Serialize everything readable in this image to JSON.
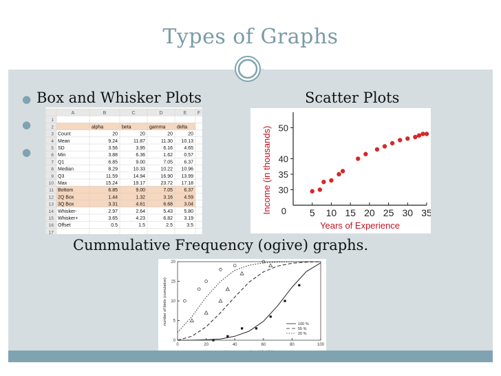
{
  "slide": {
    "title": "Types of Graphs",
    "bullets": [
      "Box and Whisker Plots",
      "",
      ""
    ],
    "scatter_title": "Scatter Plots",
    "ogive_caption": "Cummulative  Frequency  (ogive) graphs."
  },
  "spreadsheet": {
    "col_headers": [
      "",
      "A",
      "B",
      "C",
      "D",
      "E",
      "F"
    ],
    "rows": [
      {
        "n": "1",
        "a": "",
        "b": "",
        "c": "",
        "d": "",
        "e": "",
        "hl": false
      },
      {
        "n": "2",
        "a": "",
        "b": "alpha",
        "c": "beta",
        "d": "gamma",
        "e": "delta",
        "hl": true
      },
      {
        "n": "3",
        "a": "Count",
        "b": "20",
        "c": "20",
        "d": "20",
        "e": "20",
        "hl": false
      },
      {
        "n": "4",
        "a": "Mean",
        "b": "9.24",
        "c": "11.87",
        "d": "11.30",
        "e": "10.13",
        "hl": false
      },
      {
        "n": "5",
        "a": "SD",
        "b": "3.56",
        "c": "3.95",
        "d": "6.16",
        "e": "4.65",
        "hl": false
      },
      {
        "n": "6",
        "a": "Min",
        "b": "3.88",
        "c": "6.36",
        "d": "1.62",
        "e": "0.57",
        "hl": false
      },
      {
        "n": "7",
        "a": "Q1",
        "b": "6.85",
        "c": "9.00",
        "d": "7.05",
        "e": "6.37",
        "hl": false
      },
      {
        "n": "8",
        "a": "Median",
        "b": "8.29",
        "c": "10.33",
        "d": "10.22",
        "e": "10.96",
        "hl": false
      },
      {
        "n": "9",
        "a": "Q3",
        "b": "11.59",
        "c": "14.94",
        "d": "16.90",
        "e": "13.99",
        "hl": false
      },
      {
        "n": "10",
        "a": "Max",
        "b": "15.24",
        "c": "19.17",
        "d": "23.72",
        "e": "17.18",
        "hl": false
      },
      {
        "n": "11",
        "a": "Bottom",
        "b": "6.85",
        "c": "9.00",
        "d": "7.05",
        "e": "6.37",
        "hl": true
      },
      {
        "n": "12",
        "a": "2Q Box",
        "b": "1.44",
        "c": "1.32",
        "d": "3.16",
        "e": "4.59",
        "hl": true
      },
      {
        "n": "13",
        "a": "3Q Box",
        "b": "3.31",
        "c": "4.61",
        "d": "6.68",
        "e": "3.04",
        "hl": true
      },
      {
        "n": "14",
        "a": "Whisker-",
        "b": "2.97",
        "c": "2.64",
        "d": "5.43",
        "e": "5.80",
        "hl": false
      },
      {
        "n": "15",
        "a": "Whisker+",
        "b": "3.65",
        "c": "4.23",
        "d": "6.82",
        "e": "3.19",
        "hl": false
      },
      {
        "n": "16",
        "a": "Offset",
        "b": "0.5",
        "c": "1.5",
        "d": "2.5",
        "e": "3.5",
        "hl": false
      },
      {
        "n": "17",
        "a": "",
        "b": "",
        "c": "",
        "d": "",
        "e": "",
        "hl": false
      }
    ]
  },
  "scatter": {
    "ylabel": "Income (in thousands)",
    "xlabel": "Years of Experience",
    "xticks": [
      "5",
      "10",
      "15",
      "20",
      "25",
      "30",
      "35"
    ],
    "yticks": [
      "30",
      "35",
      "40",
      "50"
    ],
    "origin": "0"
  },
  "ogive": {
    "xticks": [
      "0",
      "20",
      "40",
      "60",
      "80",
      "100"
    ],
    "yticks": [
      "0",
      "5",
      "10",
      "15",
      "20"
    ],
    "xlabel": "time spent on inactivity (%)",
    "ylabel": "number of birds (cumulative)",
    "legend": [
      "100 %",
      "55 %",
      "20 %"
    ]
  },
  "chart_data": [
    {
      "type": "scatter",
      "title": "Scatter Plots",
      "xlabel": "Years of Experience",
      "ylabel": "Income (in thousands)",
      "xlim": [
        0,
        35
      ],
      "ylim": [
        25,
        55
      ],
      "points": [
        [
          5,
          29.5
        ],
        [
          7,
          30
        ],
        [
          8,
          32.5
        ],
        [
          10,
          33
        ],
        [
          12,
          35
        ],
        [
          13,
          36
        ],
        [
          17,
          40
        ],
        [
          19,
          41.5
        ],
        [
          22,
          43
        ],
        [
          24,
          44
        ],
        [
          26,
          45
        ],
        [
          28,
          46
        ],
        [
          30,
          46.5
        ],
        [
          32,
          47
        ],
        [
          33,
          47.5
        ],
        [
          34,
          48
        ],
        [
          35,
          48
        ]
      ],
      "color": "#d62828"
    },
    {
      "type": "line",
      "title": "Cummulative  Frequency  (ogive) graphs.",
      "xlabel": "time spent on inactivity (%)",
      "ylabel": "number of birds (cumulative)",
      "xlim": [
        0,
        100
      ],
      "ylim": [
        0,
        20
      ],
      "series": [
        {
          "name": "100 %",
          "style": "solid",
          "x": [
            0,
            10,
            20,
            30,
            40,
            50,
            60,
            70,
            80,
            90,
            100
          ],
          "y": [
            0,
            0,
            0.1,
            0.3,
            1,
            2.3,
            4.8,
            8.8,
            13.5,
            17.5,
            19.7
          ]
        },
        {
          "name": "55 %",
          "style": "dashed",
          "x": [
            0,
            10,
            20,
            30,
            40,
            50,
            60,
            70,
            80,
            90,
            100
          ],
          "y": [
            0,
            1,
            3.4,
            7,
            11,
            14.8,
            17.4,
            18.9,
            19.6,
            19.9,
            20
          ]
        },
        {
          "name": "20 %",
          "style": "dotted",
          "x": [
            0,
            10,
            20,
            30,
            40,
            50,
            60,
            70,
            80,
            90,
            100
          ],
          "y": [
            2,
            6,
            11,
            15,
            17.8,
            19.1,
            19.7,
            19.9,
            20,
            20,
            20
          ]
        }
      ],
      "markers": {
        "filled": [
          [
            25,
            0
          ],
          [
            35,
            1
          ],
          [
            45,
            3
          ],
          [
            55,
            3
          ],
          [
            65,
            6
          ],
          [
            75,
            10
          ],
          [
            85,
            14
          ]
        ],
        "open_triangle": [
          [
            10,
            5
          ],
          [
            20,
            7
          ],
          [
            30,
            10
          ],
          [
            35,
            13
          ],
          [
            45,
            17
          ],
          [
            65,
            19
          ]
        ],
        "open_circle": [
          [
            5,
            10
          ],
          [
            15,
            13
          ],
          [
            20,
            15
          ],
          [
            30,
            18
          ],
          [
            40,
            19
          ],
          [
            60,
            20
          ]
        ]
      }
    }
  ]
}
